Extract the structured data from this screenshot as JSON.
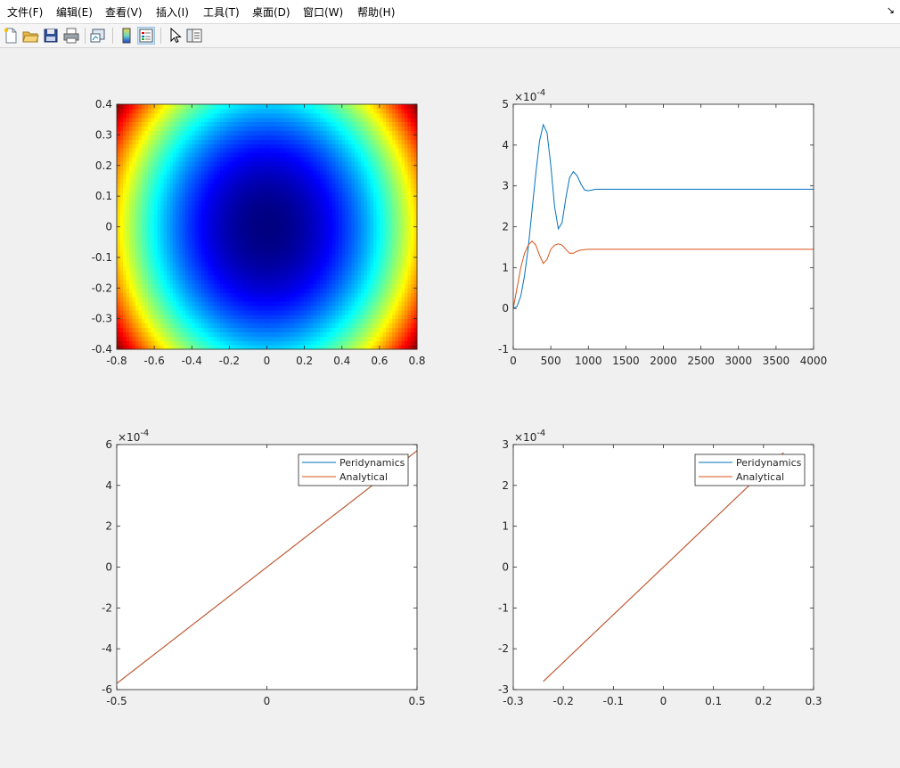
{
  "menu": {
    "items": [
      "文件(F)",
      "编辑(E)",
      "查看(V)",
      "插入(I)",
      "工具(T)",
      "桌面(D)",
      "窗口(W)",
      "帮助(H)"
    ],
    "arrow": "↘"
  },
  "toolbar": {
    "icons": [
      "new-figure-icon",
      "open-file-icon",
      "save-icon",
      "print-icon",
      "link-plot-icon",
      "colorbar-icon",
      "legend-icon",
      "pointer-icon",
      "property-editor-icon"
    ]
  },
  "colors": {
    "series_blue": "#0072bd",
    "series_orange": "#d95319"
  },
  "chart_data": [
    {
      "type": "heatmap",
      "colormap": "jet",
      "description": "",
      "xlim": [
        -0.8,
        0.8
      ],
      "ylim": [
        -0.4,
        0.4
      ],
      "xticks": [
        "-0.8",
        "-0.6",
        "-0.4",
        "-0.2",
        "0",
        "0.2",
        "0.4",
        "0.6",
        "0.8"
      ],
      "yticks": [
        "-0.4",
        "-0.3",
        "-0.2",
        "-0.1",
        "0",
        "0.1",
        "0.2",
        "0.3",
        "0.4"
      ]
    },
    {
      "type": "line",
      "exponent": "-4",
      "xlim": [
        0,
        4000
      ],
      "ylim": [
        -1,
        5
      ],
      "xticks": [
        "0",
        "500",
        "1000",
        "1500",
        "2000",
        "2500",
        "3000",
        "3500",
        "4000"
      ],
      "yticks": [
        "-1",
        "0",
        "1",
        "2",
        "3",
        "4",
        "5"
      ],
      "series": [
        {
          "color": "#0072bd",
          "points": [
            [
              0,
              0
            ],
            [
              50,
              0.05
            ],
            [
              100,
              0.3
            ],
            [
              150,
              0.8
            ],
            [
              200,
              1.5
            ],
            [
              250,
              2.4
            ],
            [
              300,
              3.3
            ],
            [
              350,
              4.1
            ],
            [
              400,
              4.5
            ],
            [
              450,
              4.3
            ],
            [
              500,
              3.5
            ],
            [
              550,
              2.5
            ],
            [
              600,
              1.95
            ],
            [
              650,
              2.1
            ],
            [
              700,
              2.7
            ],
            [
              750,
              3.2
            ],
            [
              800,
              3.35
            ],
            [
              850,
              3.25
            ],
            [
              900,
              3.05
            ],
            [
              950,
              2.9
            ],
            [
              1000,
              2.88
            ],
            [
              1050,
              2.9
            ],
            [
              1100,
              2.92
            ],
            [
              1200,
              2.92
            ],
            [
              2000,
              2.92
            ],
            [
              3000,
              2.92
            ],
            [
              4000,
              2.92
            ]
          ]
        },
        {
          "color": "#d95319",
          "points": [
            [
              0,
              0
            ],
            [
              50,
              0.5
            ],
            [
              100,
              1.0
            ],
            [
              150,
              1.35
            ],
            [
              200,
              1.55
            ],
            [
              250,
              1.65
            ],
            [
              300,
              1.55
            ],
            [
              350,
              1.3
            ],
            [
              400,
              1.1
            ],
            [
              450,
              1.2
            ],
            [
              500,
              1.45
            ],
            [
              550,
              1.55
            ],
            [
              600,
              1.58
            ],
            [
              650,
              1.55
            ],
            [
              700,
              1.45
            ],
            [
              750,
              1.35
            ],
            [
              800,
              1.35
            ],
            [
              850,
              1.4
            ],
            [
              900,
              1.43
            ],
            [
              1000,
              1.45
            ],
            [
              1100,
              1.45
            ],
            [
              2000,
              1.45
            ],
            [
              3000,
              1.45
            ],
            [
              4000,
              1.45
            ]
          ]
        }
      ]
    },
    {
      "type": "line",
      "exponent": "-4",
      "xlim": [
        -0.5,
        0.5
      ],
      "ylim": [
        -6,
        6
      ],
      "xticks": [
        "-0.5",
        "0",
        "0.5"
      ],
      "yticks": [
        "-6",
        "-4",
        "-2",
        "0",
        "2",
        "4",
        "6"
      ],
      "legend": {
        "position": "top-right",
        "entries": [
          "Peridynamics",
          "Analytical"
        ]
      },
      "series": [
        {
          "name": "Peridynamics",
          "color": "#0072bd",
          "points": [
            [
              -0.5,
              -5.7
            ],
            [
              0.5,
              5.7
            ]
          ]
        },
        {
          "name": "Analytical",
          "color": "#d95319",
          "points": [
            [
              -0.5,
              -5.7
            ],
            [
              0.5,
              5.7
            ]
          ]
        }
      ]
    },
    {
      "type": "line",
      "exponent": "-4",
      "xlim": [
        -0.3,
        0.3
      ],
      "ylim": [
        -3,
        3
      ],
      "xticks": [
        "-0.3",
        "-0.2",
        "-0.1",
        "0",
        "0.1",
        "0.2",
        "0.3"
      ],
      "yticks": [
        "-3",
        "-2",
        "-1",
        "0",
        "1",
        "2",
        "3"
      ],
      "legend": {
        "position": "top-right",
        "entries": [
          "Peridynamics",
          "Analytical"
        ]
      },
      "series": [
        {
          "name": "Peridynamics",
          "color": "#0072bd",
          "points": [
            [
              -0.24,
              -2.8
            ],
            [
              0.24,
              2.8
            ]
          ]
        },
        {
          "name": "Analytical",
          "color": "#d95319",
          "points": [
            [
              -0.24,
              -2.8
            ],
            [
              0.24,
              2.8
            ]
          ]
        }
      ]
    }
  ]
}
